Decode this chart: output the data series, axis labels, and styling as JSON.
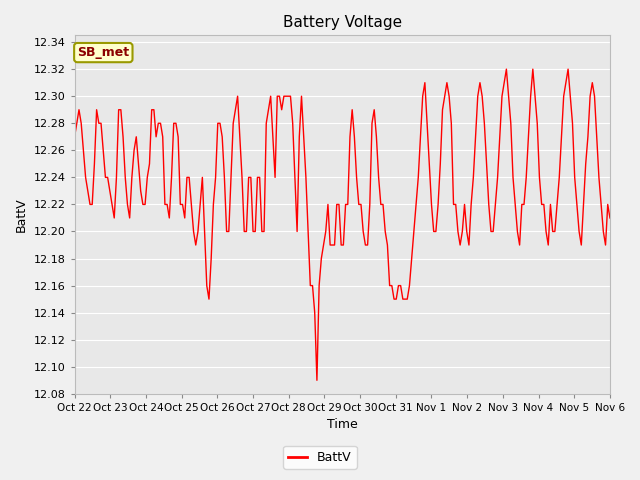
{
  "title": "Battery Voltage",
  "xlabel": "Time",
  "ylabel": "BattV",
  "legend_label": "BattV",
  "annotation_text": "SB_met",
  "line_color": "red",
  "fig_bg_color": "#f0f0f0",
  "plot_bg_color": "#e8e8e8",
  "grid_color": "white",
  "ylim": [
    12.08,
    12.345
  ],
  "yticks": [
    12.08,
    12.1,
    12.12,
    12.14,
    12.16,
    12.18,
    12.2,
    12.22,
    12.24,
    12.26,
    12.28,
    12.3,
    12.32,
    12.34
  ],
  "x_tick_labels": [
    "Oct 22",
    "Oct 23",
    "Oct 24",
    "Oct 25",
    "Oct 26",
    "Oct 27",
    "Oct 28",
    "Oct 29",
    "Oct 30",
    "Oct 31",
    "Nov 1",
    "Nov 2",
    "Nov 3",
    "Nov 4",
    "Nov 5",
    "Nov 6"
  ],
  "y_data": [
    12.27,
    12.28,
    12.29,
    12.28,
    12.26,
    12.24,
    12.23,
    12.22,
    12.22,
    12.25,
    12.29,
    12.28,
    12.28,
    12.26,
    12.24,
    12.24,
    12.23,
    12.22,
    12.21,
    12.24,
    12.29,
    12.29,
    12.27,
    12.24,
    12.22,
    12.21,
    12.24,
    12.26,
    12.27,
    12.25,
    12.23,
    12.22,
    12.22,
    12.24,
    12.25,
    12.29,
    12.29,
    12.27,
    12.28,
    12.28,
    12.27,
    12.22,
    12.22,
    12.21,
    12.24,
    12.28,
    12.28,
    12.27,
    12.22,
    12.22,
    12.21,
    12.24,
    12.24,
    12.22,
    12.2,
    12.19,
    12.2,
    12.22,
    12.24,
    12.2,
    12.16,
    12.15,
    12.18,
    12.22,
    12.24,
    12.28,
    12.28,
    12.27,
    12.24,
    12.2,
    12.2,
    12.24,
    12.28,
    12.29,
    12.3,
    12.27,
    12.24,
    12.2,
    12.2,
    12.24,
    12.24,
    12.2,
    12.2,
    12.24,
    12.24,
    12.2,
    12.2,
    12.28,
    12.29,
    12.3,
    12.27,
    12.24,
    12.3,
    12.3,
    12.29,
    12.3,
    12.3,
    12.3,
    12.3,
    12.28,
    12.24,
    12.2,
    12.27,
    12.3,
    12.27,
    12.24,
    12.2,
    12.16,
    12.16,
    12.14,
    12.09,
    12.16,
    12.18,
    12.19,
    12.2,
    12.22,
    12.19,
    12.19,
    12.19,
    12.22,
    12.22,
    12.19,
    12.19,
    12.22,
    12.22,
    12.27,
    12.29,
    12.27,
    12.24,
    12.22,
    12.22,
    12.2,
    12.19,
    12.19,
    12.22,
    12.28,
    12.29,
    12.27,
    12.24,
    12.22,
    12.22,
    12.2,
    12.19,
    12.16,
    12.16,
    12.15,
    12.15,
    12.16,
    12.16,
    12.15,
    12.15,
    12.15,
    12.16,
    12.18,
    12.2,
    12.22,
    12.24,
    12.27,
    12.3,
    12.31,
    12.28,
    12.25,
    12.22,
    12.2,
    12.2,
    12.22,
    12.25,
    12.29,
    12.3,
    12.31,
    12.3,
    12.28,
    12.22,
    12.22,
    12.2,
    12.19,
    12.2,
    12.22,
    12.2,
    12.19,
    12.22,
    12.24,
    12.27,
    12.3,
    12.31,
    12.3,
    12.28,
    12.25,
    12.22,
    12.2,
    12.2,
    12.22,
    12.24,
    12.27,
    12.3,
    12.31,
    12.32,
    12.3,
    12.28,
    12.24,
    12.22,
    12.2,
    12.19,
    12.22,
    12.22,
    12.24,
    12.27,
    12.3,
    12.32,
    12.3,
    12.28,
    12.24,
    12.22,
    12.22,
    12.2,
    12.19,
    12.22,
    12.2,
    12.2,
    12.22,
    12.24,
    12.27,
    12.3,
    12.31,
    12.32,
    12.3,
    12.28,
    12.24,
    12.22,
    12.2,
    12.19,
    12.22,
    12.25,
    12.27,
    12.3,
    12.31,
    12.3,
    12.27,
    12.24,
    12.22,
    12.2,
    12.19,
    12.22,
    12.21
  ]
}
